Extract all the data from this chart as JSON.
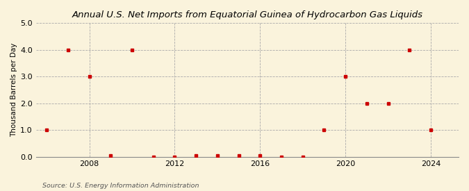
{
  "title": "Annual U.S. Net Imports from Equatorial Guinea of Hydrocarbon Gas Liquids",
  "ylabel": "Thousand Barrels per Day",
  "source": "Source: U.S. Energy Information Administration",
  "background_color": "#faf3dc",
  "plot_bg_color": "#faf3dc",
  "marker_color": "#cc0000",
  "grid_color": "#aaaaaa",
  "years": [
    2006,
    2007,
    2008,
    2009,
    2010,
    2011,
    2012,
    2013,
    2014,
    2015,
    2016,
    2017,
    2018,
    2019,
    2020,
    2021,
    2022,
    2023,
    2024
  ],
  "values": [
    1.0,
    4.0,
    3.0,
    0.04,
    4.0,
    0.0,
    0.0,
    0.04,
    0.04,
    0.04,
    0.04,
    0.0,
    0.0,
    1.0,
    3.0,
    2.0,
    2.0,
    4.0,
    1.0
  ],
  "xlim": [
    2005.5,
    2025.3
  ],
  "ylim": [
    0.0,
    5.0
  ],
  "yticks": [
    0.0,
    1.0,
    2.0,
    3.0,
    4.0,
    5.0
  ],
  "xticks": [
    2008,
    2012,
    2016,
    2020,
    2024
  ],
  "vgrid_positions": [
    2008,
    2012,
    2016,
    2020,
    2024
  ]
}
